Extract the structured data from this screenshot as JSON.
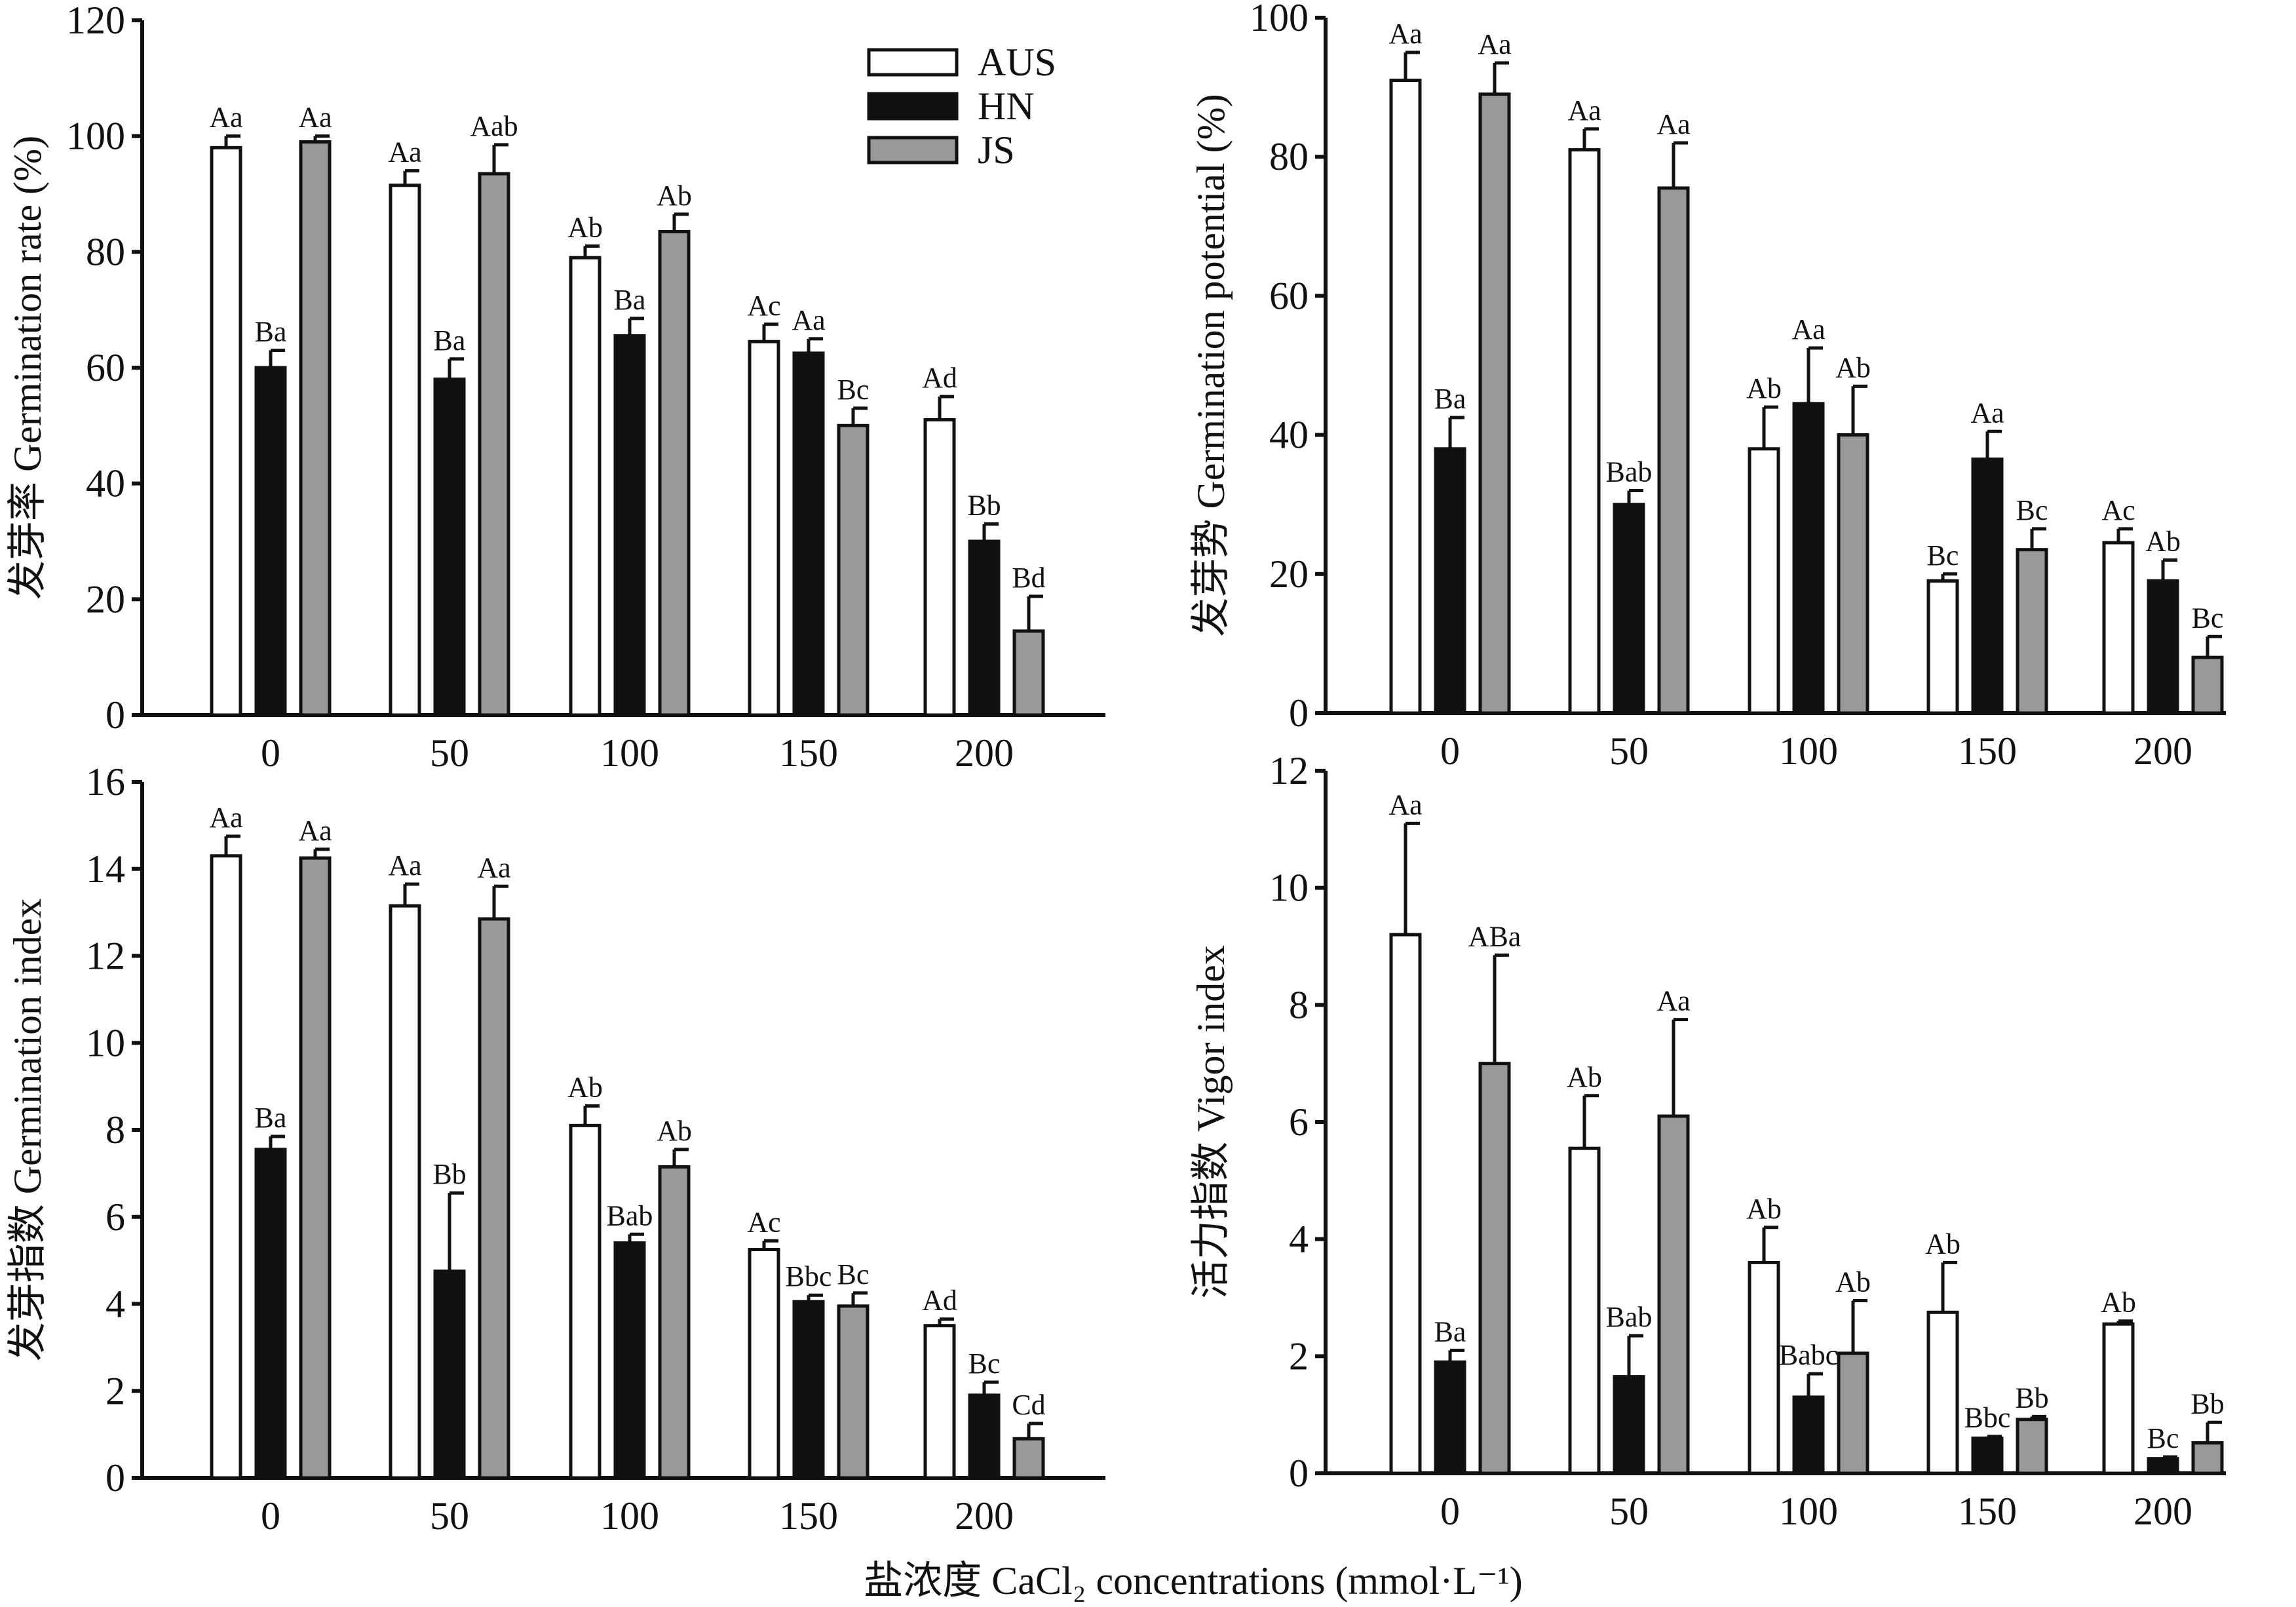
{
  "x_axis_label": "盐浓度 CaCl₂ concentrations (mmol·L⁻¹)",
  "legend": [
    {
      "name": "AUS",
      "color": "#ffffff"
    },
    {
      "name": "HN",
      "color": "#111111"
    },
    {
      "name": "JS",
      "color": "#999999"
    }
  ],
  "chart_data": [
    {
      "type": "bar",
      "ylabel": "发芽率 Germination rate (%)",
      "ylim": [
        0,
        120
      ],
      "ystep": 20,
      "categories": [
        "0",
        "50",
        "100",
        "150",
        "200"
      ],
      "series": [
        {
          "name": "AUS",
          "values": [
            98,
            91.5,
            79,
            64.5,
            51
          ],
          "errors": [
            2,
            2.5,
            2,
            3,
            4
          ],
          "labels": [
            "Aa",
            "Aa",
            "Ab",
            "Ac",
            "Ad"
          ]
        },
        {
          "name": "HN",
          "values": [
            60,
            58,
            65.5,
            62.5,
            30
          ],
          "errors": [
            3,
            3.5,
            3,
            2.5,
            3
          ],
          "labels": [
            "Ba",
            "Ba",
            "Ba",
            "Aa",
            "Bb"
          ]
        },
        {
          "name": "JS",
          "values": [
            99,
            93.5,
            83.5,
            50,
            14.5
          ],
          "errors": [
            1,
            5,
            3,
            3,
            6
          ],
          "labels": [
            "Aa",
            "Aab",
            "Ab",
            "Bc",
            "Bd"
          ]
        }
      ]
    },
    {
      "type": "bar",
      "ylabel": "发芽势 Germination potential (%)",
      "ylim": [
        0,
        100
      ],
      "ystep": 20,
      "categories": [
        "0",
        "50",
        "100",
        "150",
        "200"
      ],
      "series": [
        {
          "name": "AUS",
          "values": [
            91,
            81,
            38,
            19,
            24.5
          ],
          "errors": [
            4,
            3,
            6,
            1,
            2
          ],
          "labels": [
            "Aa",
            "Aa",
            "Ab",
            "Bc",
            "Ac"
          ]
        },
        {
          "name": "HN",
          "values": [
            38,
            30,
            44.5,
            36.5,
            19
          ],
          "errors": [
            4.5,
            2,
            8,
            4,
            3
          ],
          "labels": [
            "Ba",
            "Bab",
            "Aa",
            "Aa",
            "Ab"
          ]
        },
        {
          "name": "JS",
          "values": [
            89,
            75.5,
            40,
            23.5,
            8
          ],
          "errors": [
            4.5,
            6.5,
            7,
            3,
            3
          ],
          "labels": [
            "Aa",
            "Aa",
            "Ab",
            "Bc",
            "Bc"
          ]
        }
      ]
    },
    {
      "type": "bar",
      "ylabel": "发芽指数 Germination index",
      "ylim": [
        0,
        16
      ],
      "ystep": 2,
      "categories": [
        "0",
        "50",
        "100",
        "150",
        "200"
      ],
      "series": [
        {
          "name": "AUS",
          "values": [
            14.3,
            13.15,
            8.1,
            5.25,
            3.5
          ],
          "errors": [
            0.45,
            0.5,
            0.45,
            0.2,
            0.15
          ],
          "labels": [
            "Aa",
            "Aa",
            "Ab",
            "Ac",
            "Ad"
          ]
        },
        {
          "name": "HN",
          "values": [
            7.55,
            4.75,
            5.4,
            4.05,
            1.9
          ],
          "errors": [
            0.3,
            1.8,
            0.2,
            0.15,
            0.3
          ],
          "labels": [
            "Ba",
            "Bb",
            "Bab",
            "Bbc",
            "Bc"
          ]
        },
        {
          "name": "JS",
          "values": [
            14.25,
            12.85,
            7.15,
            3.95,
            0.9
          ],
          "errors": [
            0.2,
            0.75,
            0.4,
            0.3,
            0.35
          ],
          "labels": [
            "Aa",
            "Aa",
            "Ab",
            "Bc",
            "Cd"
          ]
        }
      ]
    },
    {
      "type": "bar",
      "ylabel": "活力指数 Vigor index",
      "ylim": [
        0,
        12
      ],
      "ystep": 2,
      "categories": [
        "0",
        "50",
        "100",
        "150",
        "200"
      ],
      "series": [
        {
          "name": "AUS",
          "values": [
            9.2,
            5.55,
            3.6,
            2.75,
            2.55
          ],
          "errors": [
            1.9,
            0.9,
            0.6,
            0.85,
            0.05
          ],
          "labels": [
            "Aa",
            "Ab",
            "Ab",
            "Ab",
            "Ab"
          ]
        },
        {
          "name": "HN",
          "values": [
            1.9,
            1.65,
            1.3,
            0.6,
            0.25
          ],
          "errors": [
            0.2,
            0.7,
            0.4,
            0.03,
            0.03
          ],
          "labels": [
            "Ba",
            "Bab",
            "Babc",
            "Bbc",
            "Bc"
          ]
        },
        {
          "name": "JS",
          "values": [
            7.0,
            6.1,
            2.05,
            0.92,
            0.52
          ],
          "errors": [
            1.85,
            1.65,
            0.9,
            0.05,
            0.35
          ],
          "labels": [
            "ABa",
            "Aa",
            "Ab",
            "Bb",
            "Bb"
          ]
        }
      ]
    }
  ]
}
